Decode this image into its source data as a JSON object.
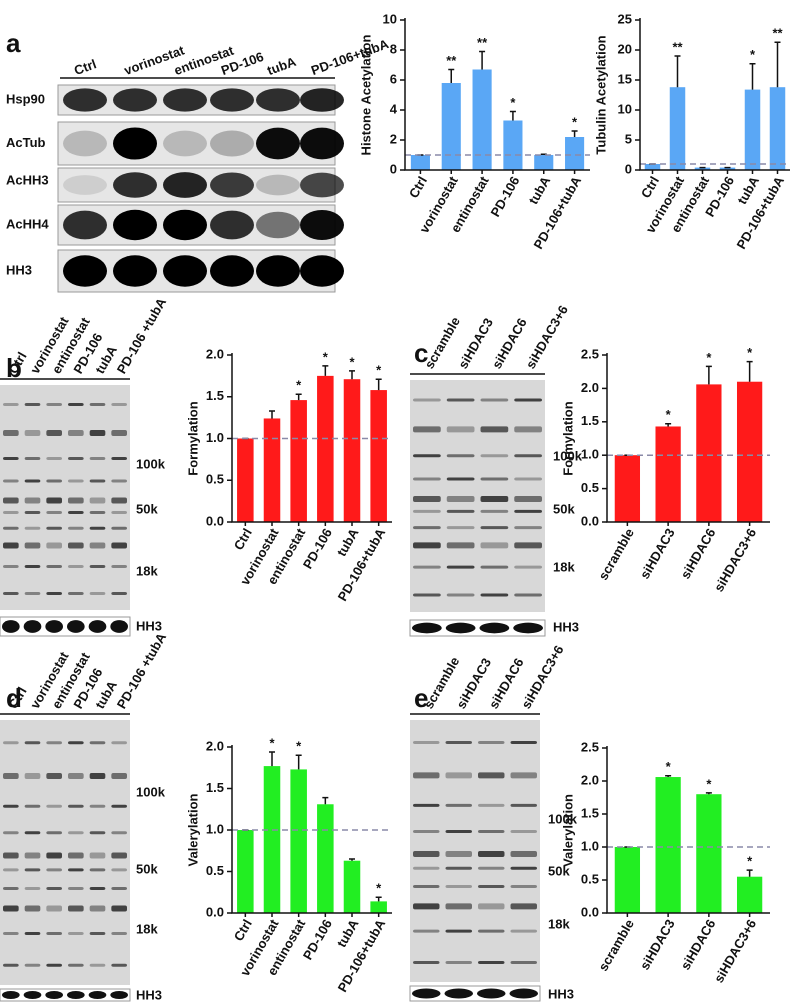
{
  "chart_data": [
    {
      "type": "bar",
      "ylabel": "Histone Acetylation",
      "categories": [
        "Ctrl",
        "vorinostat",
        "entinostat",
        "PD-106",
        "tubA",
        "PD-106+tubA"
      ],
      "values": [
        1,
        5.8,
        6.7,
        3.3,
        1.0,
        2.2
      ],
      "errors": [
        0,
        0.9,
        1.2,
        0.6,
        0.05,
        0.4
      ],
      "annotations": [
        null,
        "**",
        "**",
        "*",
        null,
        "*"
      ],
      "color": "#5aa7f5",
      "ylim": [
        0,
        10
      ],
      "yticks": [
        0,
        2,
        4,
        6,
        8,
        10
      ],
      "reference_line": 1
    },
    {
      "type": "bar",
      "ylabel": "Tubulin Acetylation",
      "categories": [
        "Ctrl",
        "vorinostat",
        "entinostat",
        "PD-106",
        "tubA",
        "PD-106+tubA"
      ],
      "values": [
        1,
        13.8,
        0.4,
        0.4,
        13.4,
        13.8
      ],
      "errors": [
        0,
        5.2,
        0,
        0,
        4.3,
        7.5
      ],
      "annotations": [
        null,
        "**",
        null,
        null,
        "*",
        "**"
      ],
      "color": "#5aa7f5",
      "ylim": [
        0,
        25
      ],
      "yticks": [
        0,
        5,
        10,
        15,
        20,
        25
      ],
      "reference_line": 1
    },
    {
      "type": "bar",
      "ylabel": "Formylation",
      "categories": [
        "Ctrl",
        "vorinostat",
        "entinostat",
        "PD-106",
        "tubA",
        "PD-106+tubA"
      ],
      "values": [
        1,
        1.24,
        1.46,
        1.75,
        1.71,
        1.58
      ],
      "errors": [
        0,
        0.09,
        0.07,
        0.12,
        0.1,
        0.13
      ],
      "annotations": [
        null,
        null,
        "*",
        "*",
        "*",
        "*"
      ],
      "color": "#ff1a1a",
      "ylim": [
        0,
        2
      ],
      "yticks": [
        {
          "value": 0,
          "label": "0.0"
        },
        {
          "value": 0.5,
          "label": "0.5"
        },
        {
          "value": 1,
          "label": "1.0"
        },
        {
          "value": 1.5,
          "label": "1.5"
        },
        {
          "value": 2,
          "label": "2.0"
        }
      ],
      "reference_line": 1
    },
    {
      "type": "bar",
      "ylabel": "Formylation",
      "categories": [
        "scramble",
        "siHDAC3",
        "siHDAC6",
        "siHDAC3+6"
      ],
      "values": [
        1,
        1.43,
        2.06,
        2.1
      ],
      "errors": [
        0,
        0.04,
        0.27,
        0.3
      ],
      "annotations": [
        null,
        "*",
        "*",
        "*"
      ],
      "color": "#ff1a1a",
      "ylim": [
        0,
        2.5
      ],
      "yticks": [
        {
          "value": 0,
          "label": "0.0"
        },
        {
          "value": 0.5,
          "label": "0.5"
        },
        {
          "value": 1,
          "label": "1.0"
        },
        {
          "value": 1.5,
          "label": "1.5"
        },
        {
          "value": 2,
          "label": "2.0"
        },
        {
          "value": 2.5,
          "label": "2.5"
        }
      ],
      "reference_line": 1
    },
    {
      "type": "bar",
      "ylabel": "Valerylation",
      "categories": [
        "Ctrl",
        "vorinostat",
        "entinostat",
        "PD-106",
        "tubA",
        "PD-106+tubA"
      ],
      "values": [
        1,
        1.77,
        1.73,
        1.31,
        0.63,
        0.14
      ],
      "errors": [
        0,
        0.17,
        0.17,
        0.08,
        0.02,
        0.05
      ],
      "annotations": [
        null,
        "*",
        "*",
        null,
        null,
        "*"
      ],
      "color": "#22ee22",
      "ylim": [
        0,
        2
      ],
      "yticks": [
        {
          "value": 0,
          "label": "0.0"
        },
        {
          "value": 0.5,
          "label": "0.5"
        },
        {
          "value": 1,
          "label": "1.0"
        },
        {
          "value": 1.5,
          "label": "1.5"
        },
        {
          "value": 2,
          "label": "2.0"
        }
      ],
      "reference_line": 1
    },
    {
      "type": "bar",
      "ylabel": "Valerylation",
      "categories": [
        "scramble",
        "siHDAC3",
        "siHDAC6",
        "siHDAC3+6"
      ],
      "values": [
        1,
        2.06,
        1.8,
        0.55
      ],
      "errors": [
        0,
        0.02,
        0.02,
        0.1
      ],
      "annotations": [
        null,
        "*",
        "*",
        "*"
      ],
      "color": "#22ee22",
      "ylim": [
        0,
        2.5
      ],
      "yticks": [
        {
          "value": 0,
          "label": "0.0"
        },
        {
          "value": 0.5,
          "label": "0.5"
        },
        {
          "value": 1,
          "label": "1.0"
        },
        {
          "value": 1.5,
          "label": "1.5"
        },
        {
          "value": 2,
          "label": "2.0"
        },
        {
          "value": 2.5,
          "label": "2.5"
        }
      ],
      "reference_line": 1
    }
  ],
  "panels": [
    {
      "label": "a",
      "lanes": [
        "Ctrl",
        "vorinostat",
        "entinostat",
        "PD-106",
        "tubA",
        "PD-106+tubA"
      ],
      "rows": [
        "Hsp90",
        "AcTub",
        "AcHH3",
        "AcHH4",
        "HH3"
      ]
    },
    {
      "label": "b",
      "lanes": [
        "Ctrl",
        "vorinostat",
        "entinostat",
        "PD-106",
        "tubA",
        "PD-106 +tubA"
      ],
      "markers": [
        "100k",
        "50k",
        "18k",
        "HH3"
      ]
    },
    {
      "label": "c",
      "lanes": [
        "scramble",
        "siHDAC3",
        "siHDAC6",
        "siHDAC3+6"
      ],
      "markers": [
        "100k",
        "50k",
        "18k",
        "HH3"
      ]
    },
    {
      "label": "d",
      "lanes": [
        "Ctrl",
        "vorinostat",
        "entinostat",
        "PD-106",
        "tubA",
        "PD-106 +tubA"
      ],
      "markers": [
        "100k",
        "50k",
        "18k",
        "HH3"
      ]
    },
    {
      "label": "e",
      "lanes": [
        "scramble",
        "siHDAC3",
        "siHDAC6",
        "siHDAC3+6"
      ],
      "markers": [
        "100k",
        "50k",
        "18k",
        "HH3"
      ]
    }
  ]
}
